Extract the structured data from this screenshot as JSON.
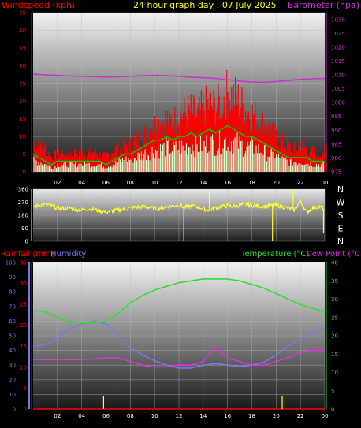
{
  "header": {
    "left_label": "Windspeed (kph)",
    "center_title": "24 hour graph day : 07 July 2025",
    "right_label": "Barometer (hpa)"
  },
  "colors": {
    "wind": "#ff0000",
    "wind_avg": "#00cc00",
    "gust_light": "#ccffcc",
    "baro": "#cc33cc",
    "dir": "#ffff33",
    "rain": "#ff0000",
    "humidity": "#7777ee",
    "temperature": "#33dd33",
    "dewpoint": "#dd33dd",
    "title": "#ffff00"
  },
  "chart_data": [
    {
      "type": "line",
      "name": "wind-baro",
      "x_ticks": [
        "02",
        "04",
        "06",
        "08",
        "10",
        "12",
        "14",
        "16",
        "18",
        "20",
        "22",
        "00"
      ],
      "yleft_ticks": [
        "0",
        "5",
        "10",
        "15",
        "20",
        "25",
        "30",
        "35",
        "40",
        "45"
      ],
      "yleft_range": [
        0,
        45
      ],
      "yright_ticks": [
        "975",
        "980",
        "985",
        "990",
        "995",
        "1000",
        "1005",
        "1010",
        "1015",
        "1020",
        "1025",
        "1030"
      ],
      "yright_range": [
        975,
        1032.5
      ],
      "x_range_hours": [
        0,
        24
      ],
      "series": [
        {
          "name": "Windspeed (kph)",
          "axis": "left",
          "kind": "gust",
          "x": [
            0,
            0.5,
            1,
            1.5,
            2,
            2.5,
            3,
            3.5,
            4,
            4.5,
            5,
            5.5,
            6,
            6.5,
            7,
            7.5,
            8,
            8.5,
            9,
            9.5,
            10,
            10.5,
            11,
            11.5,
            12,
            12.5,
            13,
            13.5,
            14,
            14.5,
            15,
            15.5,
            16,
            16.5,
            17,
            17.5,
            18,
            18.5,
            19,
            19.5,
            20,
            20.5,
            21,
            21.5,
            22,
            22.5,
            23,
            23.5,
            24
          ],
          "y": [
            10,
            9,
            8,
            5,
            6,
            7,
            6,
            6,
            7,
            6,
            7,
            6,
            5,
            7,
            8,
            9,
            9,
            11,
            12,
            14,
            16,
            17,
            18,
            17,
            19,
            20,
            21,
            19,
            22,
            23,
            22,
            24,
            27,
            26,
            24,
            21,
            20,
            18,
            16,
            14,
            12,
            10,
            9,
            8,
            9,
            8,
            7,
            6,
            7
          ]
        },
        {
          "name": "Average",
          "axis": "left",
          "kind": "avg",
          "x": [
            0,
            0.5,
            1,
            1.5,
            2,
            2.5,
            3,
            3.5,
            4,
            4.5,
            5,
            5.5,
            6,
            6.5,
            7,
            7.5,
            8,
            8.5,
            9,
            9.5,
            10,
            10.5,
            11,
            11.5,
            12,
            12.5,
            13,
            13.5,
            14,
            14.5,
            15,
            15.5,
            16,
            16.5,
            17,
            17.5,
            18,
            18.5,
            19,
            19.5,
            20,
            20.5,
            21,
            21.5,
            22,
            22.5,
            23,
            23.5,
            24
          ],
          "y": [
            5,
            4,
            3,
            2,
            3,
            3,
            3,
            3,
            3,
            3,
            3,
            3,
            2,
            3,
            4,
            5,
            5,
            6,
            7,
            8,
            9,
            9,
            10,
            9,
            10,
            10,
            11,
            10,
            11,
            12,
            11,
            12,
            13,
            12,
            11,
            10,
            10,
            9,
            8,
            7,
            6,
            5,
            4,
            4,
            4,
            4,
            3,
            3,
            3
          ]
        },
        {
          "name": "Barometer (hpa)",
          "axis": "right",
          "kind": "baro",
          "x": [
            0,
            1,
            2,
            3,
            4,
            5,
            6,
            7,
            8,
            9,
            10,
            11,
            12,
            13,
            14,
            15,
            16,
            17,
            18,
            19,
            20,
            21,
            22,
            23,
            24
          ],
          "y": [
            1010.3,
            1010.0,
            1009.8,
            1009.6,
            1009.5,
            1009.4,
            1009.2,
            1009.3,
            1009.5,
            1009.7,
            1009.8,
            1009.7,
            1009.5,
            1009.2,
            1009.0,
            1008.7,
            1008.3,
            1007.8,
            1007.4,
            1007.3,
            1007.6,
            1008.0,
            1008.4,
            1008.6,
            1008.7
          ]
        }
      ]
    },
    {
      "type": "scatter",
      "name": "wind-direction",
      "x_ticks": [
        "02",
        "04",
        "06",
        "08",
        "10",
        "12",
        "14",
        "16",
        "18",
        "20",
        "22",
        "00"
      ],
      "y_ticks": [
        "360",
        "270",
        "180",
        "90",
        "0"
      ],
      "y_range": [
        0,
        360
      ],
      "compass_labels": [
        "N",
        "W",
        "S",
        "E",
        "N"
      ],
      "series": [
        {
          "name": "Direction",
          "x": [
            0,
            0.5,
            1,
            1.5,
            2,
            2.5,
            3,
            3.5,
            4,
            4.5,
            5,
            5.5,
            6,
            6.5,
            7,
            7.5,
            8,
            8.5,
            9,
            9.5,
            10,
            10.5,
            11,
            11.5,
            12,
            12.5,
            13,
            13.5,
            14,
            14.5,
            15,
            15.5,
            16,
            16.5,
            17,
            17.5,
            18,
            18.5,
            19,
            19.5,
            20,
            20.5,
            21,
            21.5,
            22,
            22.5,
            23,
            23.5,
            24
          ],
          "y": [
            240,
            250,
            255,
            245,
            230,
            225,
            230,
            220,
            215,
            225,
            220,
            210,
            200,
            210,
            215,
            220,
            230,
            235,
            240,
            235,
            225,
            230,
            240,
            245,
            250,
            235,
            245,
            240,
            225,
            215,
            230,
            240,
            245,
            240,
            250,
            255,
            250,
            245,
            240,
            245,
            250,
            240,
            230,
            215,
            280,
            200,
            230,
            240,
            220
          ]
        }
      ]
    },
    {
      "type": "line",
      "name": "rain-humidity-temp",
      "x_ticks": [
        "02",
        "04",
        "06",
        "08",
        "10",
        "12",
        "14",
        "16",
        "18",
        "20",
        "22",
        "00"
      ],
      "y_humidity_ticks": [
        "0",
        "10",
        "20",
        "30",
        "40",
        "50",
        "60",
        "70",
        "80",
        "90",
        "100"
      ],
      "y_humidity_range": [
        0,
        100
      ],
      "y_rain_ticks": [
        "0",
        "5",
        "10",
        "15",
        "20",
        "25",
        "30",
        "35"
      ],
      "y_rain_range": [
        0,
        35
      ],
      "y_temp_ticks": [
        "0",
        "5",
        "10",
        "15",
        "20",
        "25",
        "30",
        "35",
        "40"
      ],
      "y_temp_range": [
        0,
        40
      ],
      "legend": [
        "Rainfall (mm)",
        "Humidity",
        "Temperature (°C)",
        "Dew Point (°C)"
      ],
      "series": [
        {
          "name": "Humidity",
          "axis": "humidity",
          "x": [
            0,
            1,
            2,
            3,
            4,
            5,
            6,
            7,
            8,
            9,
            10,
            11,
            12,
            13,
            14,
            15,
            16,
            17,
            18,
            19,
            20,
            21,
            22,
            23,
            24
          ],
          "y": [
            43,
            44,
            48,
            55,
            58,
            60,
            58,
            50,
            42,
            37,
            33,
            30,
            28,
            28,
            30,
            31,
            30,
            29,
            30,
            32,
            37,
            43,
            48,
            52,
            55
          ]
        },
        {
          "name": "Temperature (°C)",
          "axis": "temp",
          "x": [
            0,
            1,
            2,
            3,
            4,
            5,
            6,
            7,
            8,
            9,
            10,
            11,
            12,
            13,
            14,
            15,
            16,
            17,
            18,
            19,
            20,
            21,
            22,
            23,
            24
          ],
          "y": [
            27,
            26.5,
            25,
            24,
            23.5,
            23.5,
            24,
            26,
            29,
            31,
            32.5,
            33.5,
            34.5,
            35,
            35.5,
            35.5,
            35.5,
            35,
            34,
            33,
            31.5,
            30,
            28.5,
            27.5,
            26.5
          ]
        },
        {
          "name": "Dew Point (°C)",
          "axis": "temp",
          "x": [
            0,
            1,
            2,
            3,
            4,
            5,
            6,
            7,
            8,
            9,
            10,
            11,
            12,
            13,
            14,
            15,
            16,
            17,
            18,
            19,
            20,
            21,
            22,
            23,
            24
          ],
          "y": [
            13.5,
            13.5,
            13.5,
            13.5,
            13.5,
            13.7,
            14,
            14,
            13,
            12,
            11.5,
            11.5,
            12,
            12,
            13,
            17,
            14,
            13,
            12,
            12,
            13,
            14,
            15.5,
            16,
            16
          ]
        },
        {
          "name": "Rainfall (mm)",
          "axis": "rain",
          "x": [
            0,
            24
          ],
          "y": [
            0,
            0
          ]
        }
      ]
    }
  ]
}
